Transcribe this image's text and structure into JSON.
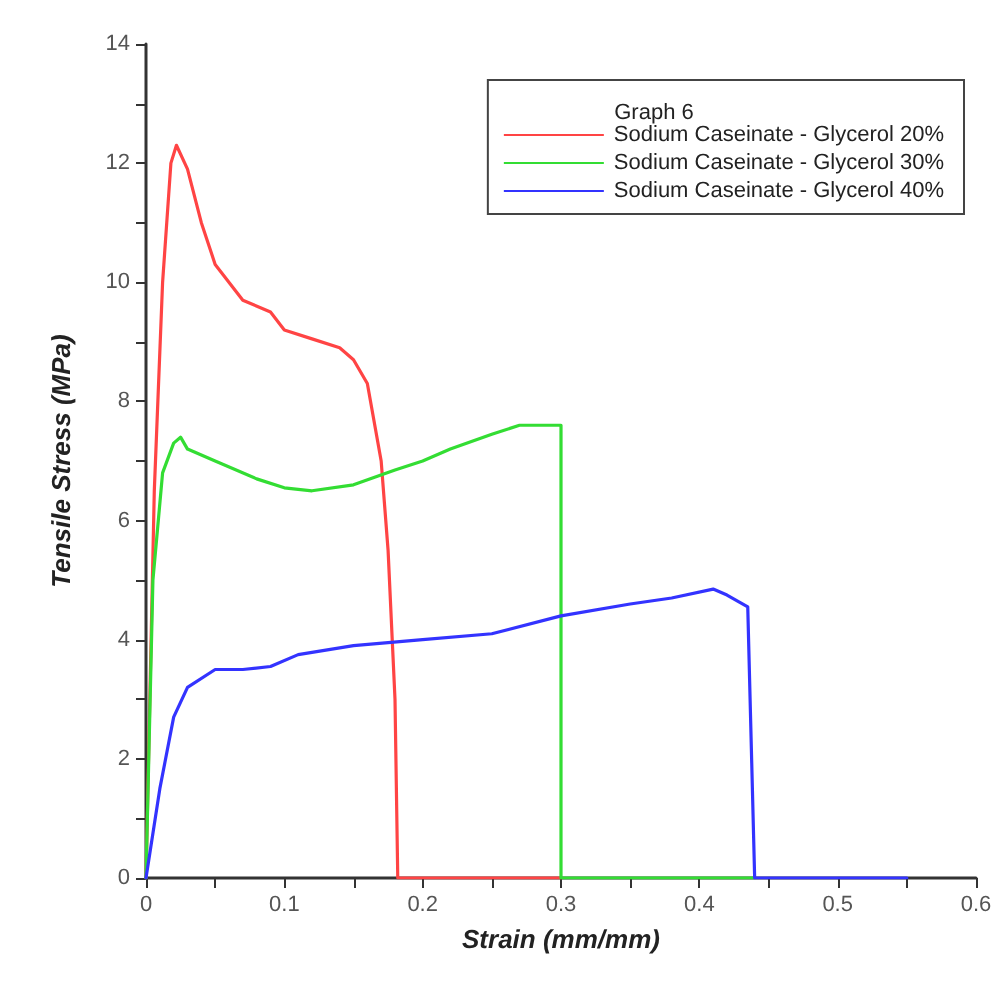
{
  "chart_data": {
    "type": "line",
    "xlabel": "Strain (mm/mm)",
    "ylabel": "Tensile Stress (MPa)",
    "legend_title": "Graph 6",
    "legend": "top right",
    "grid": false,
    "marker": "none",
    "line_style": "solid",
    "xlim": [
      0,
      0.6
    ],
    "ylim": [
      0,
      14
    ],
    "xticks": [
      0,
      {
        "value": 0.05,
        "label": null
      },
      0.1,
      {
        "value": 0.15,
        "label": null
      },
      0.2,
      {
        "value": 0.25,
        "label": null
      },
      0.3,
      {
        "value": 0.35,
        "label": null
      },
      0.4,
      {
        "value": 0.45,
        "label": null
      },
      0.5,
      {
        "value": 0.55,
        "label": null
      },
      0.6
    ],
    "yticks": [
      0,
      {
        "value": 1,
        "label": null
      },
      2,
      {
        "value": 3,
        "label": null
      },
      4,
      {
        "value": 5,
        "label": null
      },
      6,
      {
        "value": 7,
        "label": null
      },
      8,
      {
        "value": 9,
        "label": null
      },
      10,
      {
        "value": 11,
        "label": null
      },
      12,
      {
        "value": 13,
        "label": null
      },
      14
    ],
    "series": [
      {
        "name": "Sodium Caseinate - Glycerol 20%",
        "color": "#ff4444",
        "x": [
          0,
          0.006,
          0.012,
          0.018,
          0.022,
          0.03,
          0.04,
          0.05,
          0.07,
          0.09,
          0.1,
          0.12,
          0.14,
          0.15,
          0.16,
          0.17,
          0.175,
          0.18,
          0.182,
          0.3
        ],
        "values": [
          0,
          6.5,
          10,
          12,
          12.3,
          11.9,
          11,
          10.3,
          9.7,
          9.5,
          9.2,
          9.05,
          8.9,
          8.7,
          8.3,
          7,
          5.5,
          3,
          0,
          0
        ]
      },
      {
        "name": "Sodium Caseinate - Glycerol 30%",
        "color": "#33dd33",
        "x": [
          0,
          0.005,
          0.012,
          0.02,
          0.025,
          0.03,
          0.05,
          0.08,
          0.1,
          0.12,
          0.15,
          0.18,
          0.2,
          0.22,
          0.25,
          0.27,
          0.3,
          0.3,
          0.44
        ],
        "values": [
          0,
          5,
          6.8,
          7.3,
          7.4,
          7.2,
          7,
          6.7,
          6.55,
          6.5,
          6.6,
          6.85,
          7,
          7.2,
          7.45,
          7.6,
          7.6,
          0,
          0
        ]
      },
      {
        "name": "Sodium Caseinate - Glycerol 40%",
        "color": "#3333ff",
        "x": [
          0,
          0.01,
          0.02,
          0.03,
          0.05,
          0.07,
          0.09,
          0.11,
          0.15,
          0.2,
          0.25,
          0.3,
          0.35,
          0.38,
          0.41,
          0.42,
          0.435,
          0.44,
          0.55
        ],
        "values": [
          0,
          1.5,
          2.7,
          3.2,
          3.5,
          3.5,
          3.55,
          3.75,
          3.9,
          4,
          4.1,
          4.4,
          4.6,
          4.7,
          4.85,
          4.75,
          4.55,
          0,
          0
        ]
      }
    ]
  }
}
